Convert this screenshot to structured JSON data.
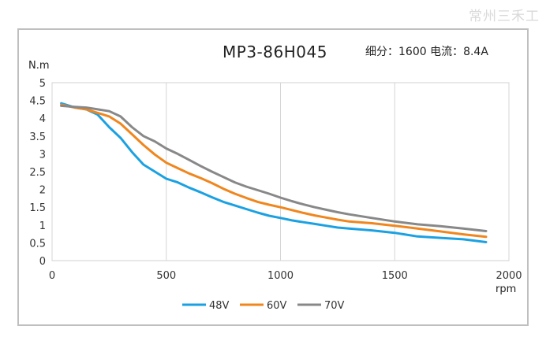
{
  "watermark": "常州三禾工",
  "chart_data": {
    "type": "line",
    "title": "MP3-86H045",
    "subtitle": "细分：1600 电流：8.4A",
    "xlabel": "rpm",
    "ylabel": "N.m",
    "xlim": [
      0,
      2000
    ],
    "ylim": [
      0,
      5
    ],
    "xticks": [
      0,
      500,
      1000,
      1500,
      2000
    ],
    "yticks": [
      0,
      0.5,
      1,
      1.5,
      2,
      2.5,
      3,
      3.5,
      4,
      4.5,
      5
    ],
    "grid": "vertical",
    "legend": "bottom",
    "series": [
      {
        "name": "48V",
        "color": "#1ba1e2",
        "x": [
          40,
          100,
          150,
          200,
          250,
          300,
          350,
          400,
          450,
          500,
          550,
          600,
          650,
          700,
          750,
          800,
          850,
          900,
          950,
          1000,
          1050,
          1100,
          1150,
          1200,
          1250,
          1300,
          1400,
          1500,
          1600,
          1700,
          1800,
          1900
        ],
        "y": [
          4.42,
          4.3,
          4.25,
          4.1,
          3.75,
          3.45,
          3.05,
          2.7,
          2.5,
          2.3,
          2.2,
          2.05,
          1.92,
          1.78,
          1.65,
          1.55,
          1.45,
          1.35,
          1.26,
          1.2,
          1.13,
          1.08,
          1.03,
          0.98,
          0.93,
          0.9,
          0.85,
          0.78,
          0.68,
          0.64,
          0.6,
          0.52
        ]
      },
      {
        "name": "60V",
        "color": "#f0861d",
        "x": [
          40,
          100,
          150,
          200,
          250,
          300,
          350,
          400,
          450,
          500,
          550,
          600,
          650,
          700,
          750,
          800,
          850,
          900,
          950,
          1000,
          1050,
          1100,
          1150,
          1200,
          1250,
          1300,
          1400,
          1500,
          1600,
          1700,
          1800,
          1900
        ],
        "y": [
          4.38,
          4.3,
          4.25,
          4.15,
          4.05,
          3.85,
          3.55,
          3.25,
          2.98,
          2.75,
          2.6,
          2.45,
          2.32,
          2.18,
          2.02,
          1.88,
          1.76,
          1.65,
          1.57,
          1.5,
          1.42,
          1.34,
          1.27,
          1.21,
          1.15,
          1.1,
          1.05,
          0.98,
          0.9,
          0.82,
          0.74,
          0.67
        ]
      },
      {
        "name": "70V",
        "color": "#888888",
        "x": [
          40,
          100,
          150,
          200,
          250,
          300,
          350,
          400,
          450,
          500,
          550,
          600,
          650,
          700,
          750,
          800,
          850,
          900,
          950,
          1000,
          1050,
          1100,
          1150,
          1200,
          1250,
          1300,
          1400,
          1500,
          1600,
          1700,
          1800,
          1900
        ],
        "y": [
          4.35,
          4.32,
          4.3,
          4.25,
          4.2,
          4.05,
          3.75,
          3.5,
          3.35,
          3.15,
          3.0,
          2.83,
          2.66,
          2.5,
          2.35,
          2.2,
          2.08,
          1.98,
          1.88,
          1.77,
          1.67,
          1.58,
          1.5,
          1.43,
          1.36,
          1.3,
          1.2,
          1.1,
          1.02,
          0.97,
          0.9,
          0.83
        ]
      }
    ]
  }
}
